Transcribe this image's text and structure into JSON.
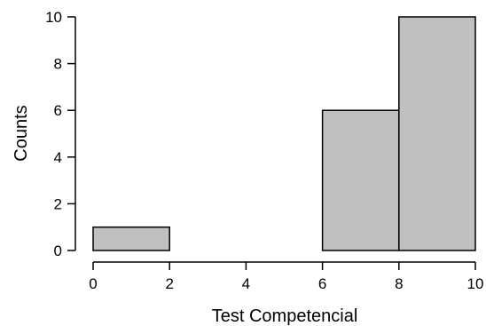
{
  "chart_data": {
    "type": "bar",
    "subtype": "histogram",
    "title": "",
    "xlabel": "Test Competencial",
    "ylabel": "Counts",
    "bins": [
      {
        "from": 0,
        "to": 2,
        "count": 1
      },
      {
        "from": 2,
        "to": 4,
        "count": 0
      },
      {
        "from": 4,
        "to": 6,
        "count": 0
      },
      {
        "from": 6,
        "to": 8,
        "count": 6
      },
      {
        "from": 8,
        "to": 10,
        "count": 10
      }
    ],
    "xlim": [
      0,
      10
    ],
    "ylim": [
      0,
      10
    ],
    "x_ticks": [
      0,
      2,
      4,
      6,
      8,
      10
    ],
    "y_ticks": [
      0,
      2,
      4,
      6,
      8,
      10
    ],
    "grid": false,
    "bar_fill": "#c0c0c0",
    "bar_stroke": "#000000"
  }
}
